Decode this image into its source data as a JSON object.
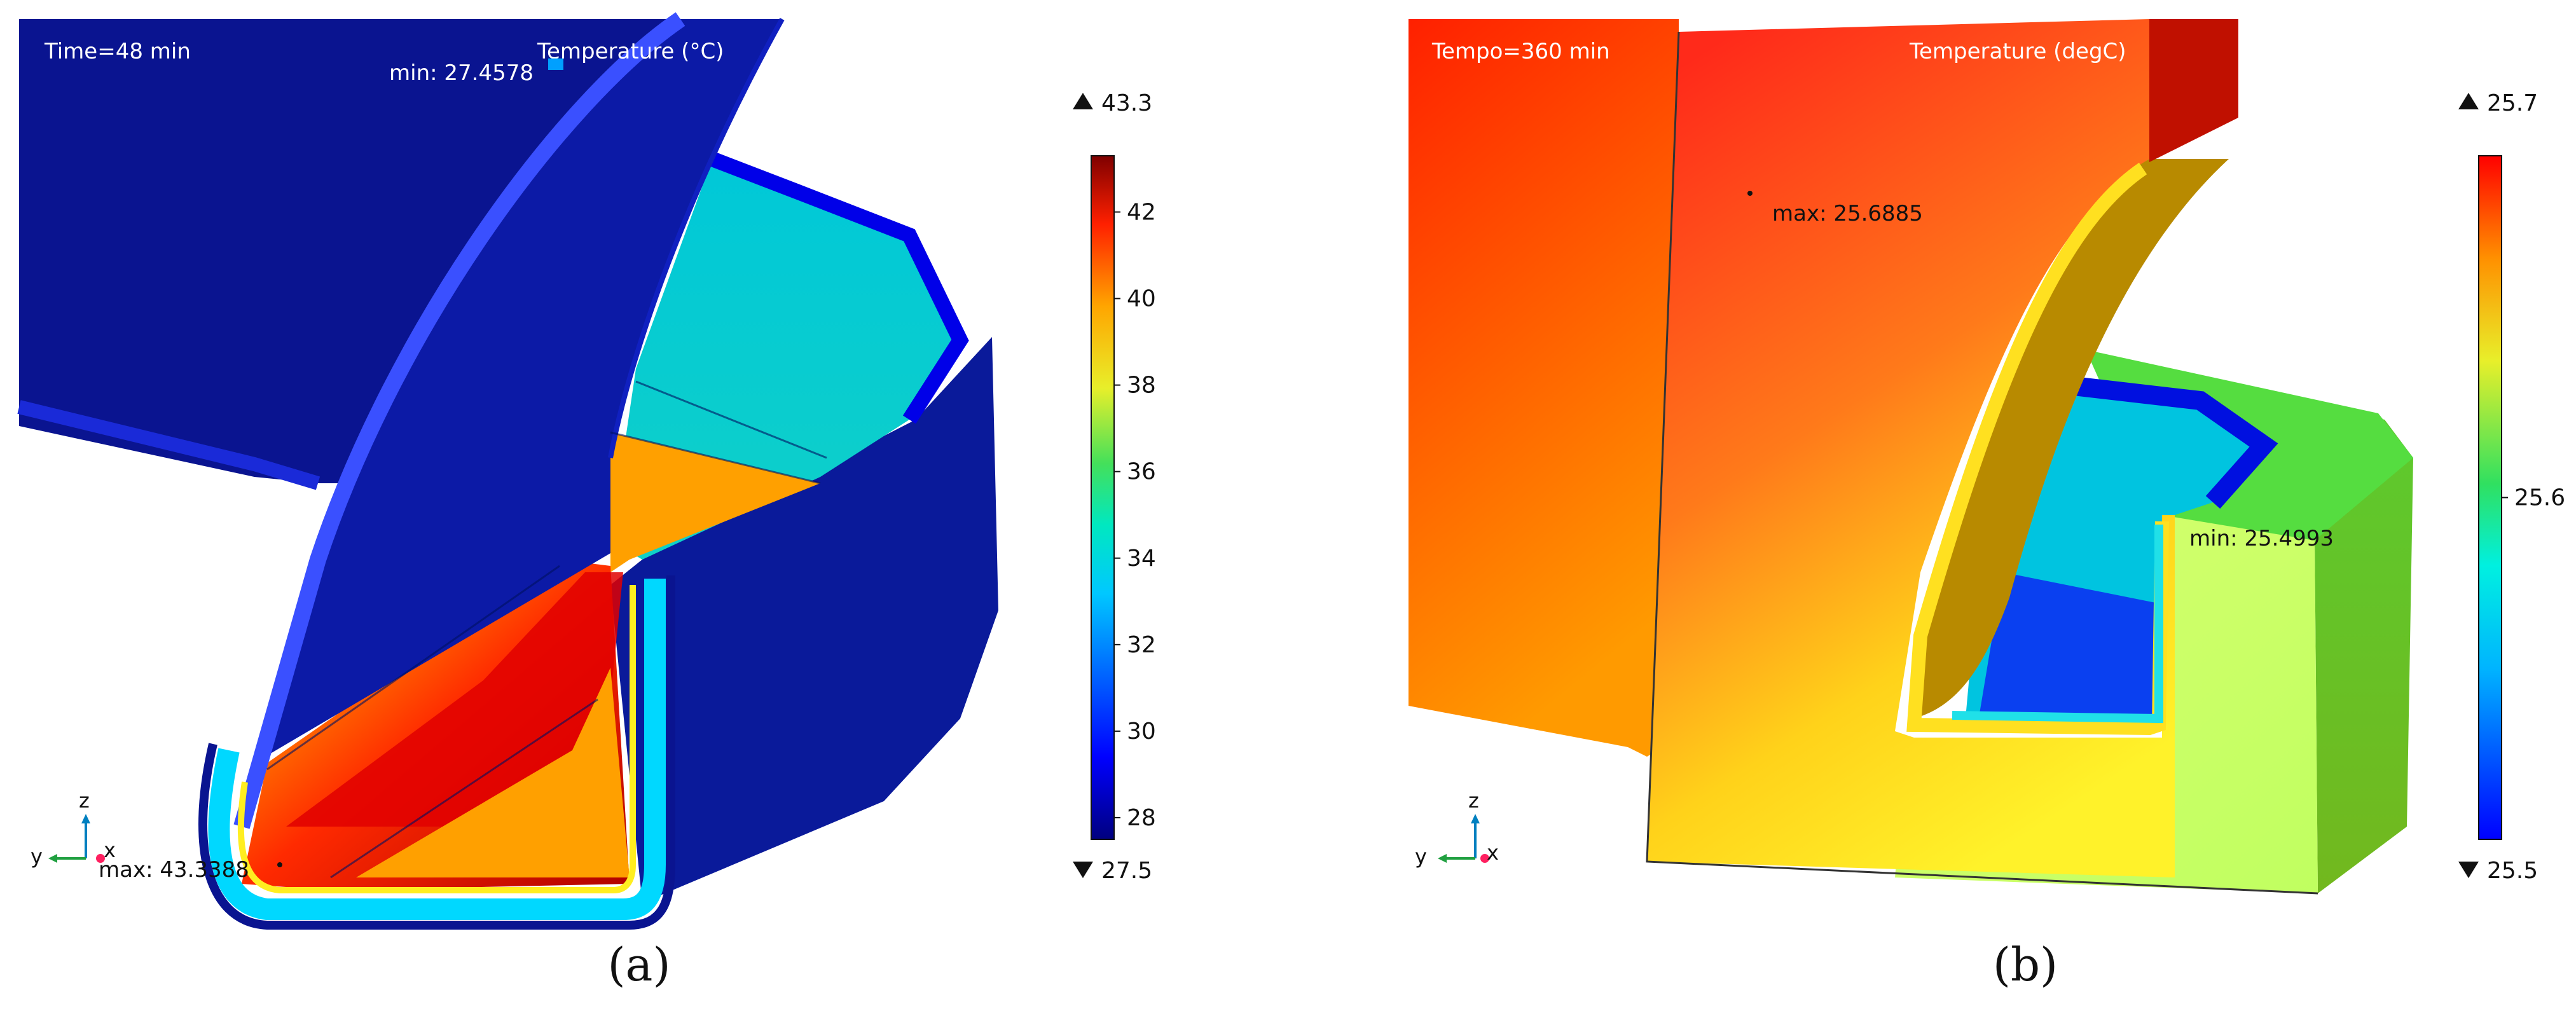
{
  "panel_a": {
    "time_label": "Time=48 min",
    "quantity_label": "Temperature (°C)",
    "min_label": "min: 27.4578",
    "max_label": "max: 43.3388",
    "colorbar": {
      "max_value": "43.3",
      "min_value": "27.5",
      "ticks": [
        "42",
        "40",
        "38",
        "36",
        "34",
        "32",
        "30",
        "28"
      ],
      "tick_values": [
        42,
        40,
        38,
        36,
        34,
        32,
        30,
        28
      ],
      "range": [
        27.5,
        43.3
      ]
    },
    "axes": {
      "z": "z",
      "y": "y",
      "x": "x"
    },
    "caption": "(a)"
  },
  "panel_b": {
    "time_label": "Tempo=360 min",
    "quantity_label": "Temperature (degC)",
    "min_label": "min: 25.4993",
    "max_label": "max: 25.6885",
    "colorbar": {
      "max_value": "25.7",
      "min_value": "25.5",
      "ticks": [
        "25.6"
      ],
      "tick_values": [
        25.6
      ],
      "range": [
        25.5,
        25.7
      ]
    },
    "axes": {
      "z": "z",
      "y": "y",
      "x": "x"
    },
    "caption": "(b)"
  },
  "colors": {
    "rainbow": [
      "#00007f",
      "#0000ff",
      "#00c8ff",
      "#00e8c0",
      "#44e05a",
      "#e8ef2a",
      "#ffa500",
      "#ff2000",
      "#7f0000"
    ],
    "deep_blue": "#0b1590",
    "red": "#ff1a00"
  }
}
